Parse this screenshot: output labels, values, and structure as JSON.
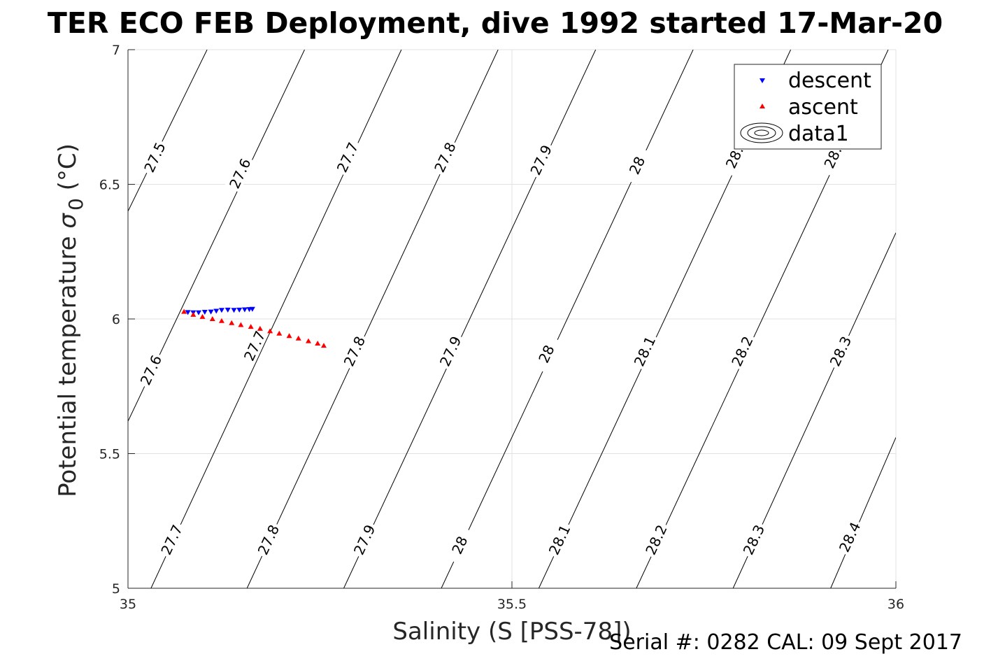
{
  "chart_data": {
    "type": "scatter",
    "title": "TER ECO FEB Deployment, dive 1992 started 17-Mar-20",
    "xlabel": "Salinity (S [PSS-78])",
    "ylabel_main": "Potential temperature ",
    "ylabel_sigma": "σ",
    "ylabel_sub": "0",
    "ylabel_unit": " (°C)",
    "footer": "Serial #: 0282  CAL: 09 Sept 2017",
    "xlim": [
      35,
      36
    ],
    "ylim": [
      5,
      7
    ],
    "x_ticks": [
      35,
      35.5,
      36
    ],
    "y_ticks": [
      5,
      5.5,
      6,
      6.5,
      7
    ],
    "x_tick_labels": [
      "35",
      "35.5",
      "36"
    ],
    "y_tick_labels": [
      "5",
      "5.5",
      "6",
      "6.5",
      "7"
    ],
    "grid": true,
    "legend_position": "top-right",
    "legend": [
      "descent",
      "ascent",
      "data1"
    ],
    "series": [
      {
        "name": "descent",
        "color": "#0000ff",
        "marker": "triangle-down",
        "points": [
          [
            35.078,
            6.025
          ],
          [
            35.085,
            6.024
          ],
          [
            35.092,
            6.024
          ],
          [
            35.1,
            6.026
          ],
          [
            35.108,
            6.027
          ],
          [
            35.115,
            6.03
          ],
          [
            35.122,
            6.033
          ],
          [
            35.13,
            6.034
          ],
          [
            35.138,
            6.033
          ],
          [
            35.145,
            6.034
          ],
          [
            35.152,
            6.035
          ],
          [
            35.158,
            6.036
          ],
          [
            35.162,
            6.037
          ]
        ]
      },
      {
        "name": "ascent",
        "color": "#ff0000",
        "marker": "triangle-up",
        "points": [
          [
            35.073,
            6.027
          ],
          [
            35.085,
            6.016
          ],
          [
            35.097,
            6.008
          ],
          [
            35.11,
            6.0
          ],
          [
            35.122,
            5.993
          ],
          [
            35.135,
            5.985
          ],
          [
            35.147,
            5.978
          ],
          [
            35.16,
            5.971
          ],
          [
            35.172,
            5.964
          ],
          [
            35.185,
            5.955
          ],
          [
            35.197,
            5.946
          ],
          [
            35.21,
            5.937
          ],
          [
            35.222,
            5.928
          ],
          [
            35.235,
            5.918
          ],
          [
            35.247,
            5.909
          ],
          [
            35.255,
            5.901
          ]
        ]
      }
    ],
    "contour_color": "#000000",
    "contours": [
      {
        "level": "27.5",
        "points": [
          [
            35.0,
            6.4
          ],
          [
            35.103,
            7.0
          ]
        ]
      },
      {
        "level": "27.6",
        "points": [
          [
            35.0,
            5.62
          ],
          [
            35.23,
            7.0
          ]
        ]
      },
      {
        "level": "27.7",
        "points": [
          [
            35.03,
            5.0
          ],
          [
            35.356,
            7.0
          ]
        ]
      },
      {
        "level": "27.8",
        "points": [
          [
            35.155,
            5.0
          ],
          [
            35.482,
            7.0
          ]
        ]
      },
      {
        "level": "27.9",
        "points": [
          [
            35.281,
            5.0
          ],
          [
            35.609,
            7.0
          ]
        ]
      },
      {
        "level": "28",
        "points": [
          [
            35.408,
            5.0
          ],
          [
            35.736,
            7.0
          ]
        ]
      },
      {
        "level": "28.1",
        "points": [
          [
            35.535,
            5.0
          ],
          [
            35.863,
            7.0
          ]
        ]
      },
      {
        "level": "28.2",
        "points": [
          [
            35.662,
            5.0
          ],
          [
            35.99,
            7.0
          ]
        ]
      },
      {
        "level": "28.3",
        "points": [
          [
            35.788,
            5.0
          ],
          [
            36.0,
            6.32
          ]
        ]
      },
      {
        "level": "28.4",
        "points": [
          [
            35.915,
            5.0
          ],
          [
            36.0,
            5.56
          ]
        ]
      }
    ],
    "contour_labels": [
      {
        "text": "27.5",
        "x": 35.035,
        "y": 6.6
      },
      {
        "text": "27.6",
        "x": 35.146,
        "y": 6.54
      },
      {
        "text": "27.7",
        "x": 35.286,
        "y": 6.6
      },
      {
        "text": "27.8",
        "x": 35.413,
        "y": 6.6
      },
      {
        "text": "27.9",
        "x": 35.538,
        "y": 6.59
      },
      {
        "text": "28",
        "x": 35.663,
        "y": 6.57
      },
      {
        "text": "28.",
        "x": 35.79,
        "y": 6.6
      },
      {
        "text": "28.",
        "x": 35.918,
        "y": 6.6
      },
      {
        "text": "27.6",
        "x": 35.03,
        "y": 5.81
      },
      {
        "text": "27.7",
        "x": 35.165,
        "y": 5.9
      },
      {
        "text": "27.8",
        "x": 35.295,
        "y": 5.88
      },
      {
        "text": "27.9",
        "x": 35.42,
        "y": 5.88
      },
      {
        "text": "28",
        "x": 35.545,
        "y": 5.87
      },
      {
        "text": "28.1",
        "x": 35.673,
        "y": 5.88
      },
      {
        "text": "28.2",
        "x": 35.8,
        "y": 5.88
      },
      {
        "text": "28.3",
        "x": 35.928,
        "y": 5.88
      },
      {
        "text": "27.7",
        "x": 35.057,
        "y": 5.18
      },
      {
        "text": "27.8",
        "x": 35.183,
        "y": 5.18
      },
      {
        "text": "27.9",
        "x": 35.308,
        "y": 5.18
      },
      {
        "text": "28",
        "x": 35.432,
        "y": 5.16
      },
      {
        "text": "28.1",
        "x": 35.562,
        "y": 5.18
      },
      {
        "text": "28.2",
        "x": 35.688,
        "y": 5.18
      },
      {
        "text": "28.3",
        "x": 35.815,
        "y": 5.18
      },
      {
        "text": "28.4",
        "x": 35.94,
        "y": 5.19
      }
    ]
  }
}
